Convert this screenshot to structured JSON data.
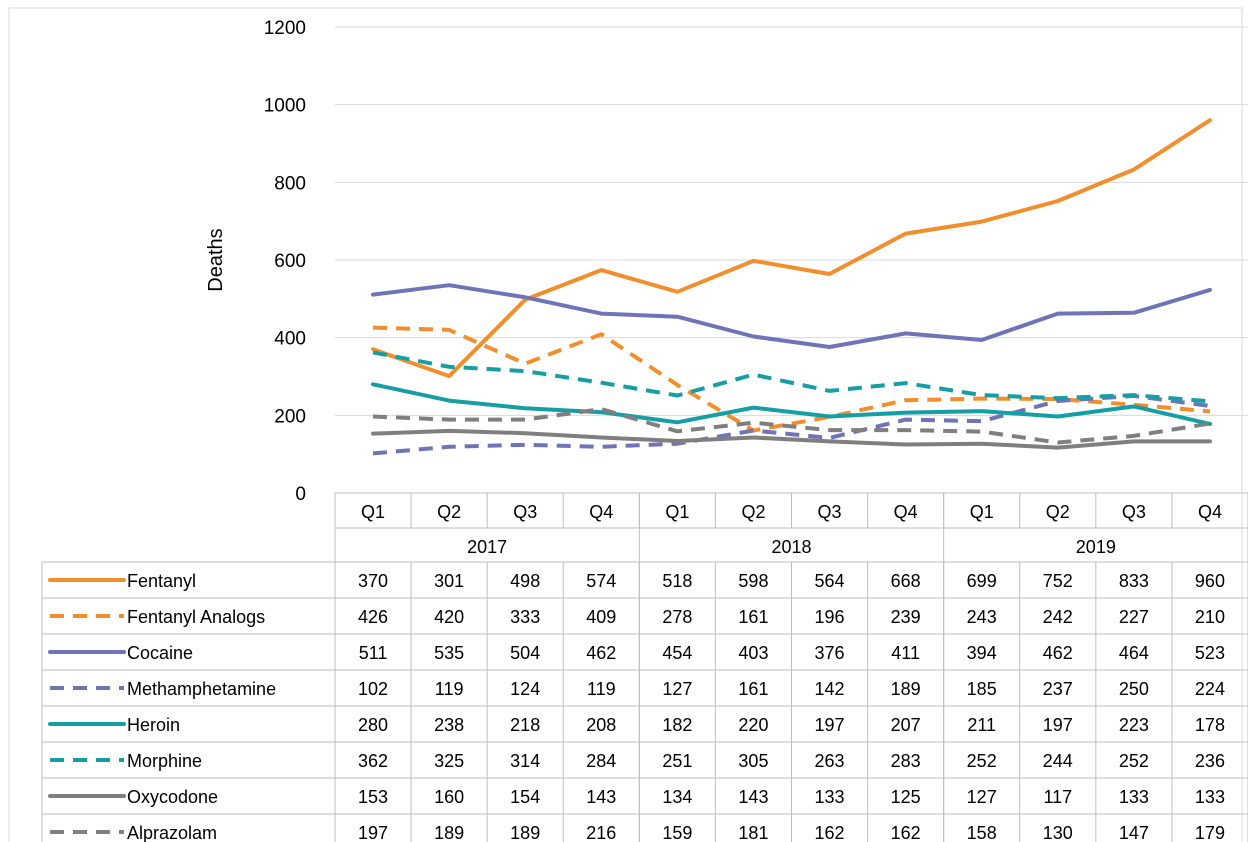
{
  "chart_data": {
    "type": "line",
    "title": "",
    "xlabel": "",
    "ylabel": "Deaths",
    "ylim": [
      0,
      1200
    ],
    "yticks": [
      0,
      200,
      400,
      600,
      800,
      1000,
      1200
    ],
    "grid": "horizontal",
    "legend": "data-table",
    "categories": [
      "Q1",
      "Q2",
      "Q3",
      "Q4",
      "Q1",
      "Q2",
      "Q3",
      "Q4",
      "Q1",
      "Q2",
      "Q3",
      "Q4"
    ],
    "years": [
      "2017",
      "2018",
      "2019"
    ],
    "series": [
      {
        "name": "Fentanyl",
        "color": "#F28E2B",
        "dash": false,
        "values": [
          370,
          301,
          498,
          574,
          518,
          598,
          564,
          668,
          699,
          752,
          833,
          960
        ]
      },
      {
        "name": "Fentanyl Analogs",
        "color": "#F28E2B",
        "dash": true,
        "values": [
          426,
          420,
          333,
          409,
          278,
          161,
          196,
          239,
          243,
          242,
          227,
          210
        ]
      },
      {
        "name": "Cocaine",
        "color": "#6F73B8",
        "dash": false,
        "values": [
          511,
          535,
          504,
          462,
          454,
          403,
          376,
          411,
          394,
          462,
          464,
          523
        ]
      },
      {
        "name": "Methamphetamine",
        "color": "#6F73B8",
        "dash": true,
        "values": [
          102,
          119,
          124,
          119,
          127,
          161,
          142,
          189,
          185,
          237,
          250,
          224
        ]
      },
      {
        "name": "Heroin",
        "color": "#159EA3",
        "dash": false,
        "values": [
          280,
          238,
          218,
          208,
          182,
          220,
          197,
          207,
          211,
          197,
          223,
          178
        ]
      },
      {
        "name": "Morphine",
        "color": "#159EA3",
        "dash": true,
        "values": [
          362,
          325,
          314,
          284,
          251,
          305,
          263,
          283,
          252,
          244,
          252,
          236
        ]
      },
      {
        "name": "Oxycodone",
        "color": "#7F7F7F",
        "dash": false,
        "values": [
          153,
          160,
          154,
          143,
          134,
          143,
          133,
          125,
          127,
          117,
          133,
          133
        ]
      },
      {
        "name": "Alprazolam",
        "color": "#7F7F7F",
        "dash": true,
        "values": [
          197,
          189,
          189,
          216,
          159,
          181,
          162,
          162,
          158,
          130,
          147,
          179
        ]
      }
    ]
  }
}
